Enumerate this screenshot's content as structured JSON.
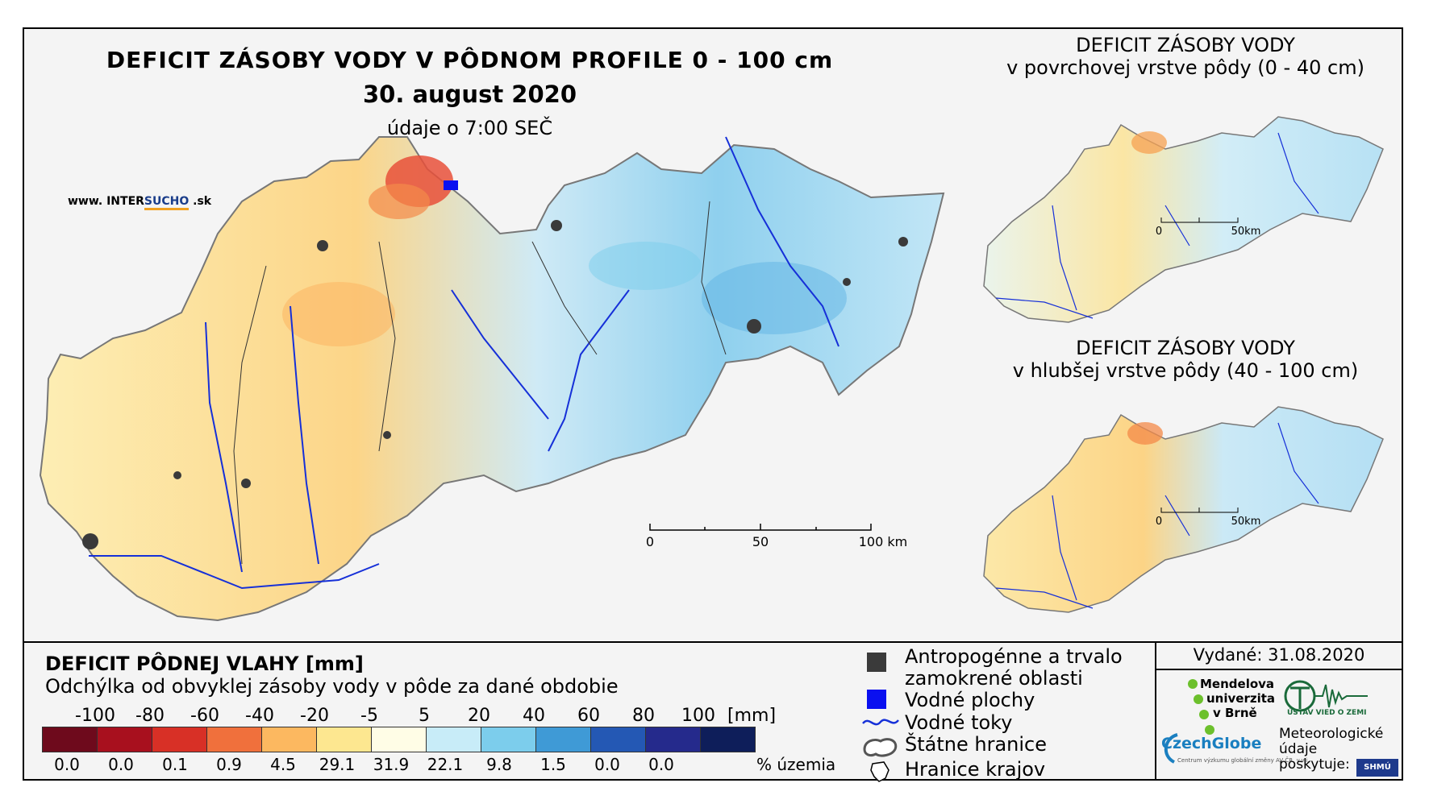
{
  "map": {
    "title": "DEFICIT ZÁSOBY VODY V PÔDNOM PROFILE 0 - 100 cm",
    "date": "30. august 2020",
    "time_note": "údaje o 7:00 SEČ",
    "site_prefix": "www. INTER",
    "site_highlight": "SUCHO",
    "site_suffix": " .sk",
    "scale_labels": [
      "0",
      "50",
      "100 km"
    ]
  },
  "inset_top": {
    "title_line1": "DEFICIT ZÁSOBY VODY",
    "title_line2": "v povrchovej vrstve pôdy (0 - 40 cm)",
    "scale_labels": [
      "0",
      "50km"
    ]
  },
  "inset_bottom": {
    "title_line1": "DEFICIT ZÁSOBY VODY",
    "title_line2": "v hlubšej vrstve pôdy (40 - 100 cm)",
    "scale_labels": [
      "0",
      "50km"
    ]
  },
  "legend": {
    "title": "DEFICIT PÔDNEJ VLAHY [mm]",
    "subtitle": "Odchýlka od obvyklej zásoby vody v pôde za dané obdobie",
    "ticks": [
      "-100",
      "-80",
      "-60",
      "-40",
      "-20",
      "-5",
      "5",
      "20",
      "40",
      "60",
      "80",
      "100"
    ],
    "unit": "[mm]",
    "colors": [
      "#6e0a1c",
      "#a8101e",
      "#d83026",
      "#f0703c",
      "#fcb860",
      "#fde790",
      "#fffde6",
      "#c8ecf8",
      "#7ccdec",
      "#3f9ad6",
      "#2458b4",
      "#252a8c",
      "#0e1e5a"
    ],
    "percentages": [
      "0.0",
      "0.0",
      "0.1",
      "0.9",
      "4.5",
      "29.1",
      "31.9",
      "22.1",
      "9.8",
      "1.5",
      "0.0",
      "0.0"
    ],
    "percent_label": "% územia"
  },
  "map_legend": {
    "anthropogenic_line1": "Antropogénne a trvalo",
    "anthropogenic_line2": "zamokrené oblasti",
    "anthropogenic_color": "#3a3a3a",
    "water_bodies": "Vodné plochy",
    "water_color": "#0a10f0",
    "rivers": "Vodné toky",
    "state_border": "Štátne hranice",
    "regional_border": "Hranice krajov"
  },
  "credits": {
    "issued": "Vydané: 31.08.2020",
    "mendel_line1": "Mendelova",
    "mendel_line2": "univerzita",
    "mendel_line3": "v Brně",
    "czechglobe": "CzechGlobe",
    "czechglobe_sub": "Centrum výzkumu globální změny AV ČR, v.v.i.",
    "ustav": "ÚSTAV VIED O ZEMI",
    "meteo_line1": "Meteorologické",
    "meteo_line2": "údaje",
    "meteo_line3": "poskytuje:",
    "shmu": "SHMÚ"
  }
}
